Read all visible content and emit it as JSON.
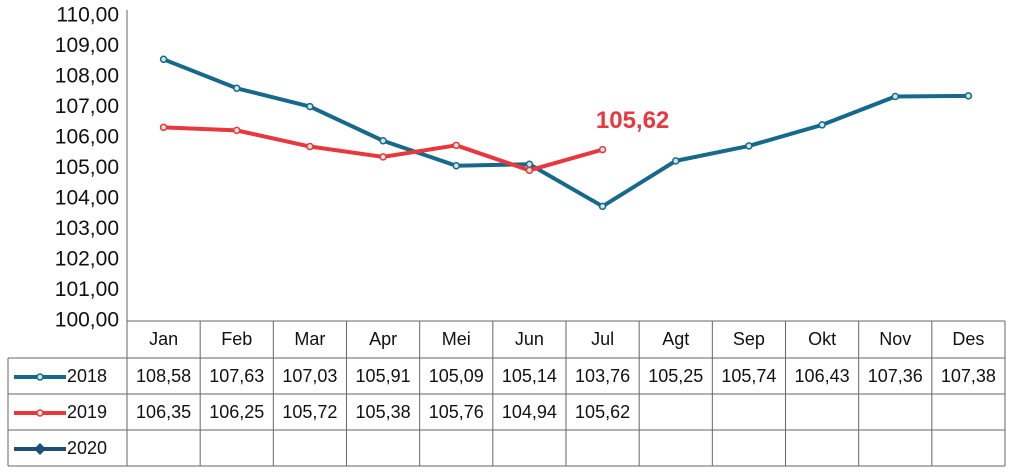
{
  "chart_data": {
    "type": "line",
    "categories": [
      "Jan",
      "Feb",
      "Mar",
      "Apr",
      "Mei",
      "Jun",
      "Jul",
      "Agt",
      "Sep",
      "Okt",
      "Nov",
      "Des"
    ],
    "series": [
      {
        "name": "2018",
        "color": "#16698a",
        "marker": "circle",
        "values": [
          108.58,
          107.63,
          107.03,
          105.91,
          105.09,
          105.14,
          103.76,
          105.25,
          105.74,
          106.43,
          107.36,
          107.38
        ],
        "value_labels": [
          "108,58",
          "107,63",
          "107,03",
          "105,91",
          "105,09",
          "105,14",
          "103,76",
          "105,25",
          "105,74",
          "106,43",
          "107,36",
          "107,38"
        ]
      },
      {
        "name": "2019",
        "color": "#e8383d",
        "marker": "circle",
        "values": [
          106.35,
          106.25,
          105.72,
          105.38,
          105.76,
          104.94,
          105.62,
          null,
          null,
          null,
          null,
          null
        ],
        "value_labels": [
          "106,35",
          "106,25",
          "105,72",
          "105,38",
          "105,76",
          "104,94",
          "105,62",
          null,
          null,
          null,
          null,
          null
        ]
      },
      {
        "name": "2020",
        "color": "#1f4e79",
        "marker": "diamond",
        "values": [
          null,
          null,
          null,
          null,
          null,
          null,
          null,
          null,
          null,
          null,
          null,
          null
        ],
        "value_labels": [
          null,
          null,
          null,
          null,
          null,
          null,
          null,
          null,
          null,
          null,
          null,
          null
        ]
      }
    ],
    "annotations": [
      {
        "text": "105,62",
        "color": "#e8383d",
        "series": 1,
        "index": 6
      }
    ],
    "ylim": [
      100,
      110
    ],
    "yticks": [
      {
        "value": 100,
        "label": "100,00"
      },
      {
        "value": 101,
        "label": "101,00"
      },
      {
        "value": 102,
        "label": "102,00"
      },
      {
        "value": 103,
        "label": "103,00"
      },
      {
        "value": 104,
        "label": "104,00"
      },
      {
        "value": 105,
        "label": "105,00"
      },
      {
        "value": 106,
        "label": "106,00"
      },
      {
        "value": 107,
        "label": "107,00"
      },
      {
        "value": 108,
        "label": "108,00"
      },
      {
        "value": 109,
        "label": "109,00"
      },
      {
        "value": 110,
        "label": "110,00"
      }
    ],
    "grid": false
  }
}
